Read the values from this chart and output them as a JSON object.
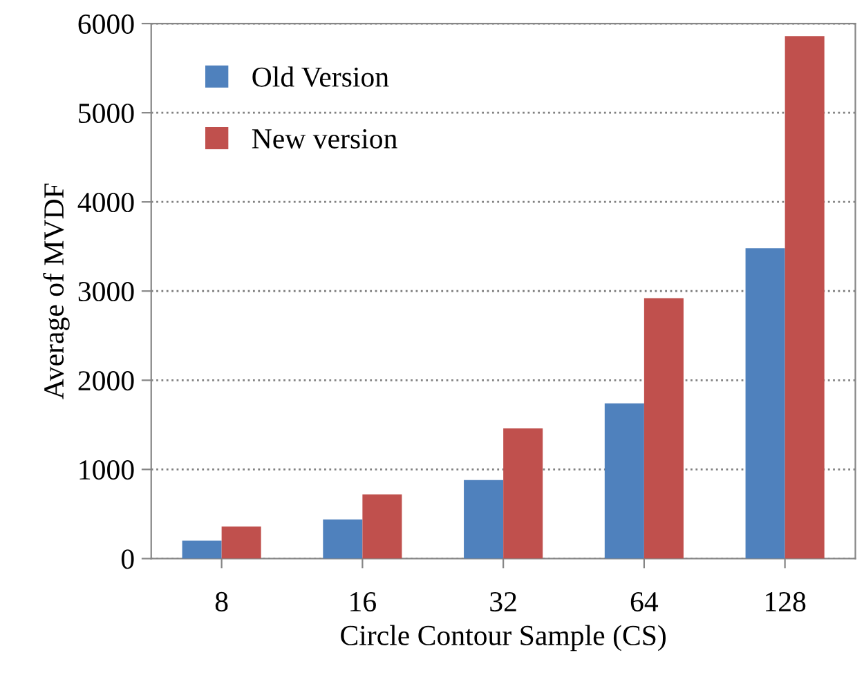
{
  "chart_data": {
    "type": "bar",
    "xlabel": "Circle Contour Sample (CS)",
    "ylabel": "Average of MVDF",
    "categories": [
      "8",
      "16",
      "32",
      "64",
      "128"
    ],
    "series": [
      {
        "name": "Old Version",
        "color": "#4f81bd",
        "values": [
          200,
          440,
          880,
          1740,
          3480
        ]
      },
      {
        "name": "New version",
        "color": "#c0504d",
        "values": [
          360,
          720,
          1460,
          2920,
          5860
        ]
      }
    ],
    "ylim": [
      0,
      6000
    ],
    "yticks": [
      0,
      1000,
      2000,
      3000,
      4000,
      5000,
      6000
    ],
    "grid": "y",
    "legend": "top left"
  }
}
